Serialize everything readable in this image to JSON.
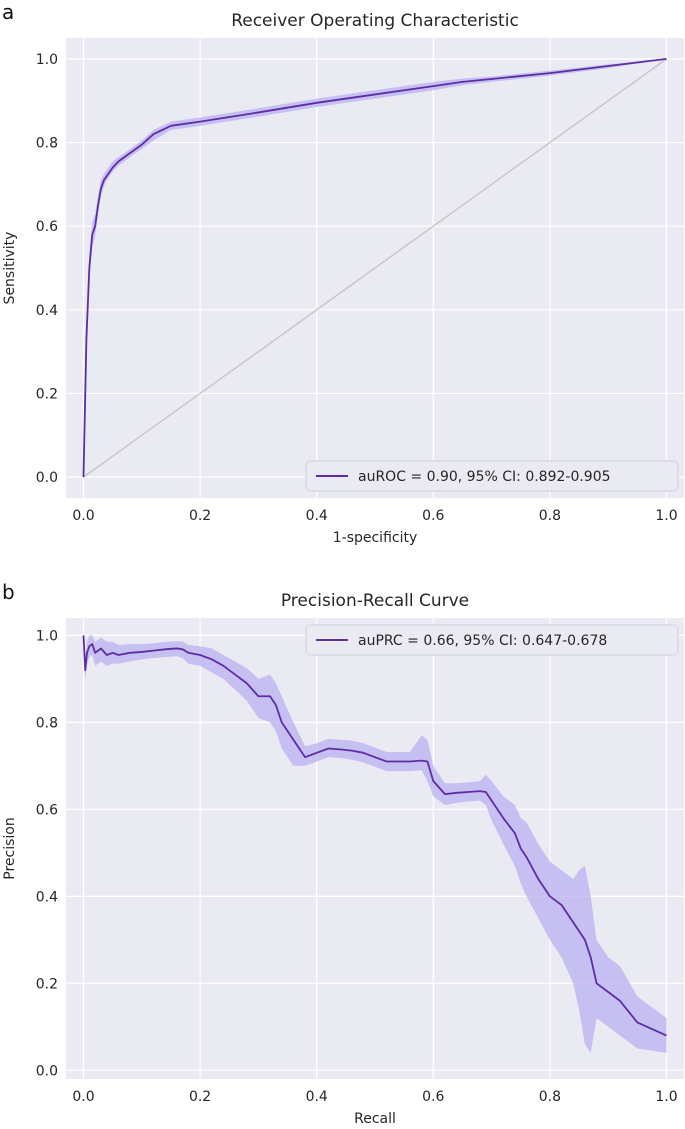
{
  "colors": {
    "background": "#eaeaf2",
    "grid": "#ffffff",
    "curve": "#5e2ca5",
    "band": "#b9b0f2",
    "diagonal": "#c8c8c8",
    "text": "#262626"
  },
  "chart_data": [
    {
      "panel_label": "a",
      "type": "line",
      "title": "Receiver Operating Characteristic",
      "xlabel": "1-specificity",
      "ylabel": "Sensitivity",
      "xlim": [
        -0.03,
        1.03
      ],
      "ylim": [
        -0.05,
        1.05
      ],
      "xticks": [
        "0.0",
        "0.2",
        "0.4",
        "0.6",
        "0.8",
        "1.0"
      ],
      "yticks": [
        "0.0",
        "0.2",
        "0.4",
        "0.6",
        "0.8",
        "1.0"
      ],
      "grid": true,
      "legend_position": "lower-right",
      "legend": "auROC = 0.90, 95% CI: 0.892-0.905",
      "reference_line": true,
      "series": [
        {
          "x": [
            0.0,
            0.005,
            0.01,
            0.015,
            0.02,
            0.025,
            0.03,
            0.035,
            0.04,
            0.05,
            0.06,
            0.08,
            0.1,
            0.12,
            0.15,
            0.2,
            0.3,
            0.4,
            0.5,
            0.6,
            0.65,
            0.7,
            0.8,
            0.9,
            1.0
          ],
          "y": [
            0.0,
            0.33,
            0.5,
            0.58,
            0.6,
            0.65,
            0.69,
            0.71,
            0.72,
            0.74,
            0.755,
            0.775,
            0.795,
            0.82,
            0.84,
            0.85,
            0.872,
            0.895,
            0.915,
            0.935,
            0.945,
            0.952,
            0.966,
            0.983,
            1.0
          ],
          "lower": [
            0.0,
            0.3,
            0.47,
            0.55,
            0.575,
            0.63,
            0.675,
            0.695,
            0.71,
            0.73,
            0.745,
            0.765,
            0.785,
            0.805,
            0.83,
            0.84,
            0.862,
            0.885,
            0.905,
            0.925,
            0.937,
            0.945,
            0.96,
            0.978,
            1.0
          ],
          "upper": [
            0.0,
            0.36,
            0.53,
            0.61,
            0.63,
            0.675,
            0.71,
            0.725,
            0.735,
            0.755,
            0.765,
            0.785,
            0.805,
            0.83,
            0.85,
            0.86,
            0.882,
            0.905,
            0.925,
            0.945,
            0.953,
            0.958,
            0.972,
            0.987,
            1.0
          ]
        }
      ]
    },
    {
      "panel_label": "b",
      "type": "line",
      "title": "Precision-Recall Curve",
      "xlabel": "Recall",
      "ylabel": "Precision",
      "xlim": [
        -0.03,
        1.03
      ],
      "ylim": [
        -0.02,
        1.04
      ],
      "xticks": [
        "0.0",
        "0.2",
        "0.4",
        "0.6",
        "0.8",
        "1.0"
      ],
      "yticks": [
        "0.0",
        "0.2",
        "0.4",
        "0.6",
        "0.8",
        "1.0"
      ],
      "grid": true,
      "legend_position": "upper-right",
      "legend": "auPRC = 0.66, 95% CI: 0.647-0.678",
      "reference_line": false,
      "series": [
        {
          "x": [
            0.0,
            0.003,
            0.006,
            0.01,
            0.015,
            0.02,
            0.025,
            0.03,
            0.04,
            0.05,
            0.06,
            0.08,
            0.1,
            0.12,
            0.14,
            0.16,
            0.17,
            0.18,
            0.2,
            0.22,
            0.24,
            0.26,
            0.28,
            0.3,
            0.32,
            0.33,
            0.34,
            0.36,
            0.38,
            0.4,
            0.42,
            0.44,
            0.46,
            0.48,
            0.5,
            0.52,
            0.54,
            0.56,
            0.58,
            0.59,
            0.6,
            0.62,
            0.64,
            0.66,
            0.68,
            0.69,
            0.7,
            0.72,
            0.74,
            0.75,
            0.76,
            0.78,
            0.8,
            0.82,
            0.84,
            0.85,
            0.86,
            0.87,
            0.88,
            0.9,
            0.92,
            0.95,
            1.0
          ],
          "y": [
            1.0,
            0.92,
            0.96,
            0.975,
            0.98,
            0.96,
            0.965,
            0.97,
            0.955,
            0.96,
            0.955,
            0.96,
            0.962,
            0.965,
            0.968,
            0.97,
            0.968,
            0.96,
            0.955,
            0.945,
            0.93,
            0.91,
            0.89,
            0.86,
            0.86,
            0.84,
            0.8,
            0.76,
            0.72,
            0.73,
            0.74,
            0.738,
            0.735,
            0.73,
            0.72,
            0.71,
            0.71,
            0.71,
            0.712,
            0.71,
            0.665,
            0.635,
            0.638,
            0.64,
            0.642,
            0.64,
            0.62,
            0.58,
            0.545,
            0.51,
            0.49,
            0.44,
            0.4,
            0.38,
            0.34,
            0.32,
            0.3,
            0.26,
            0.2,
            0.18,
            0.16,
            0.11,
            0.08
          ],
          "lower": [
            0.98,
            0.9,
            0.93,
            0.95,
            0.955,
            0.93,
            0.935,
            0.94,
            0.93,
            0.935,
            0.935,
            0.94,
            0.945,
            0.948,
            0.95,
            0.952,
            0.948,
            0.935,
            0.93,
            0.915,
            0.9,
            0.875,
            0.85,
            0.81,
            0.8,
            0.78,
            0.74,
            0.7,
            0.7,
            0.71,
            0.72,
            0.718,
            0.714,
            0.708,
            0.698,
            0.688,
            0.688,
            0.688,
            0.69,
            0.665,
            0.63,
            0.61,
            0.615,
            0.618,
            0.62,
            0.61,
            0.575,
            0.52,
            0.47,
            0.43,
            0.4,
            0.35,
            0.3,
            0.26,
            0.2,
            0.14,
            0.06,
            0.04,
            0.12,
            0.1,
            0.08,
            0.05,
            0.04
          ],
          "upper": [
            1.01,
            0.95,
            0.985,
            1.0,
            1.0,
            0.985,
            0.99,
            0.995,
            0.985,
            0.985,
            0.978,
            0.98,
            0.98,
            0.982,
            0.985,
            0.986,
            0.986,
            0.978,
            0.975,
            0.97,
            0.955,
            0.94,
            0.925,
            0.9,
            0.91,
            0.89,
            0.86,
            0.8,
            0.745,
            0.752,
            0.762,
            0.76,
            0.758,
            0.752,
            0.742,
            0.732,
            0.732,
            0.732,
            0.77,
            0.76,
            0.7,
            0.66,
            0.66,
            0.662,
            0.665,
            0.68,
            0.665,
            0.63,
            0.61,
            0.58,
            0.57,
            0.52,
            0.48,
            0.46,
            0.44,
            0.46,
            0.47,
            0.4,
            0.3,
            0.26,
            0.24,
            0.17,
            0.12
          ]
        }
      ]
    }
  ]
}
